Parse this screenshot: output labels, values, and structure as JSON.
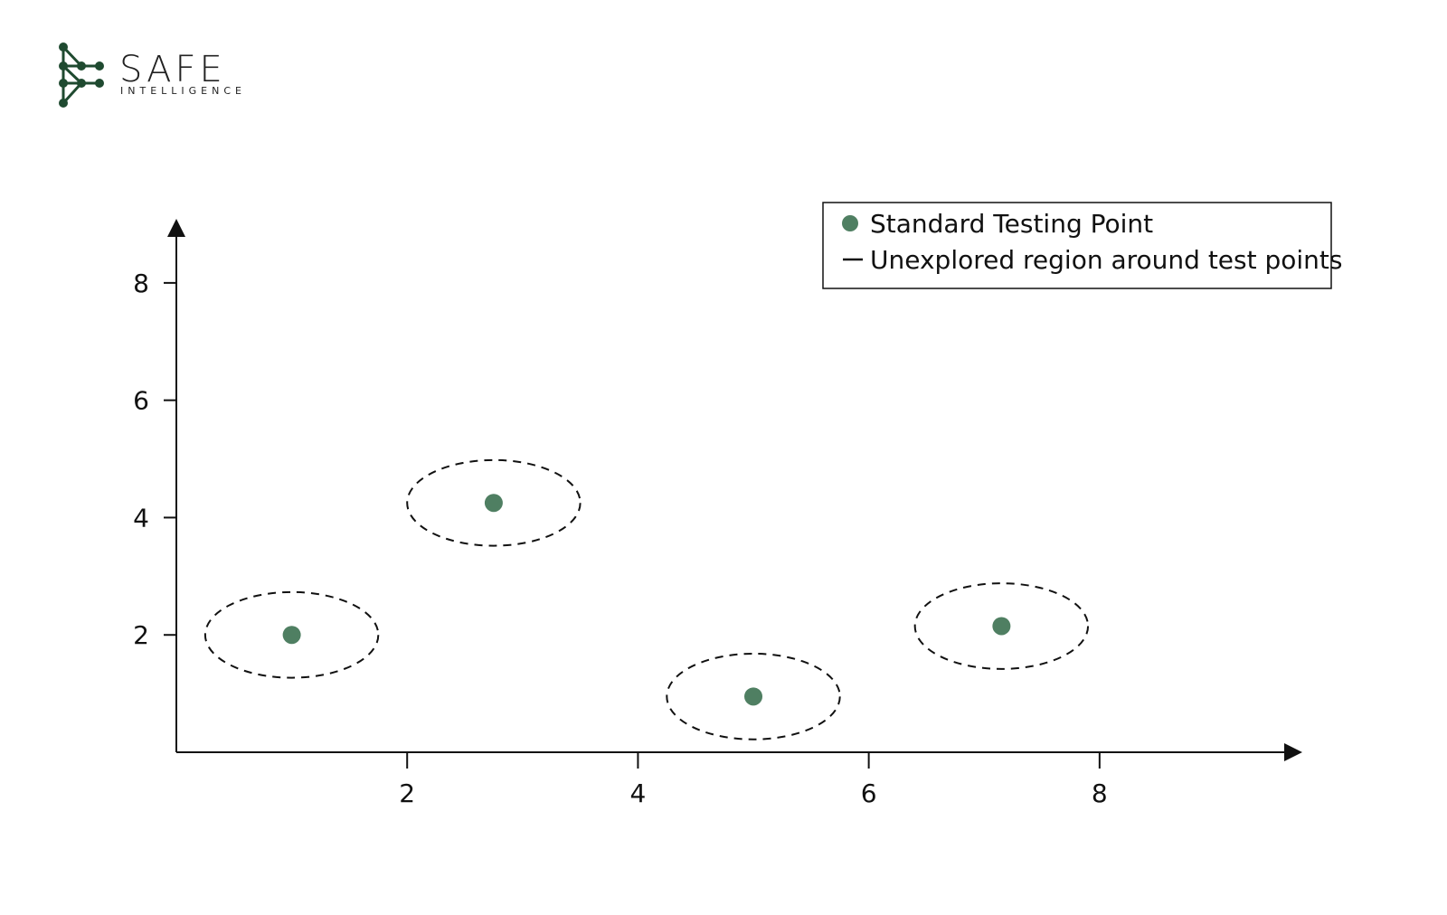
{
  "brand": {
    "name": "SAFE",
    "tagline": "INTELLIGENCE",
    "logo_color": "#1f4a30",
    "icon": "network-tree-icon"
  },
  "chart_data": {
    "type": "scatter",
    "title": "",
    "xlabel": "",
    "ylabel": "",
    "xlim": [
      0,
      9.6
    ],
    "ylim": [
      0,
      9.0
    ],
    "x_ticks": [
      2,
      4,
      6,
      8
    ],
    "y_ticks": [
      2,
      4,
      6,
      8
    ],
    "grid": false,
    "legend_position": "top-right",
    "series": [
      {
        "name": "Standard Testing Point",
        "color": "#4f7f62",
        "points": [
          {
            "x": 1.0,
            "y": 2.0
          },
          {
            "x": 2.75,
            "y": 4.25
          },
          {
            "x": 5.0,
            "y": 0.95
          },
          {
            "x": 7.15,
            "y": 2.15
          }
        ]
      },
      {
        "name": "Unexplored region around test points",
        "color": "#111111",
        "style": "dashed",
        "regions": [
          {
            "cx": 1.0,
            "cy": 2.0,
            "rx": 0.75,
            "ry": 0.73
          },
          {
            "cx": 2.75,
            "cy": 4.25,
            "rx": 0.75,
            "ry": 0.73
          },
          {
            "cx": 5.0,
            "cy": 0.95,
            "rx": 0.75,
            "ry": 0.73
          },
          {
            "cx": 7.15,
            "cy": 2.15,
            "rx": 0.75,
            "ry": 0.73
          }
        ]
      }
    ]
  }
}
